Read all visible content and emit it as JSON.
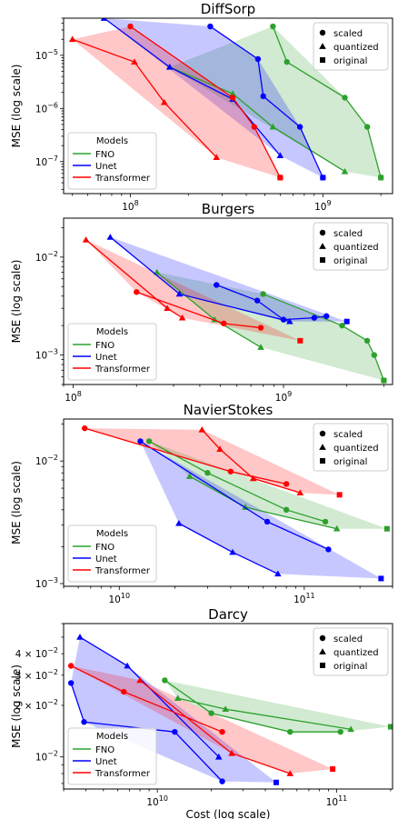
{
  "colors": {
    "FNO": "#2ca02c",
    "Unet": "#0000ff",
    "Transformer": "#ff0000"
  },
  "common": {
    "ylabel": "MSE (log scale)",
    "xlabel": "Cost (log scale)",
    "marker_legend": [
      {
        "marker": "circle",
        "label": "scaled"
      },
      {
        "marker": "triangle",
        "label": "quantized"
      },
      {
        "marker": "square",
        "label": "original"
      }
    ],
    "models_legend_title": "Models",
    "models": [
      "FNO",
      "Unet",
      "Transformer"
    ]
  },
  "chart_data": [
    {
      "type": "scatter",
      "title": "DiffSorp",
      "xscale": "log",
      "yscale": "log",
      "xlim": [
        45000000.0,
        2300000000.0
      ],
      "ylim": [
        2.5e-08,
        5e-05
      ],
      "xticks": [
        {
          "v": 100000000.0,
          "label": "10^8"
        },
        {
          "v": 1000000000.0,
          "label": "10^9"
        }
      ],
      "yticks": [
        {
          "v": 1e-07,
          "label": "10^-7"
        },
        {
          "v": 1e-06,
          "label": "10^-6"
        },
        {
          "v": 1e-05,
          "label": "10^-5"
        }
      ],
      "series": [
        {
          "name": "FNO",
          "scaled": [
            [
              550000000.0,
              3.5e-05
            ],
            [
              650000000.0,
              7.5e-06
            ],
            [
              1300000000.0,
              1.6e-06
            ],
            [
              1700000000.0,
              4.5e-07
            ],
            [
              2000000000.0,
              5e-08
            ]
          ],
          "quantized": [
            [
              160000000.0,
              6e-06
            ],
            [
              340000000.0,
              1.9e-06
            ],
            [
              550000000.0,
              4.5e-07
            ],
            [
              1300000000.0,
              6.5e-08
            ]
          ],
          "original": [
            [
              2000000000.0,
              5e-08
            ]
          ]
        },
        {
          "name": "Unet",
          "scaled": [
            [
              260000000.0,
              3.5e-05
            ],
            [
              460000000.0,
              8.5e-06
            ],
            [
              490000000.0,
              1.7e-06
            ],
            [
              760000000.0,
              4.5e-07
            ],
            [
              1000000000.0,
              5e-08
            ]
          ],
          "quantized": [
            [
              73000000.0,
              5e-05
            ],
            [
              160000000.0,
              6e-06
            ],
            [
              340000000.0,
              1.5e-06
            ],
            [
              600000000.0,
              1.3e-07
            ]
          ],
          "original": [
            [
              1000000000.0,
              5e-08
            ]
          ]
        },
        {
          "name": "Transformer",
          "scaled": [
            [
              100000000.0,
              3.5e-05
            ],
            [
              340000000.0,
              1.6e-06
            ],
            [
              440000000.0,
              4.5e-07
            ],
            [
              600000000.0,
              5e-08
            ]
          ],
          "quantized": [
            [
              50000000.0,
              2e-05
            ],
            [
              105000000.0,
              7.5e-06
            ],
            [
              150000000.0,
              1.3e-06
            ],
            [
              280000000.0,
              1.2e-07
            ]
          ],
          "original": [
            [
              600000000.0,
              5e-08
            ]
          ]
        }
      ],
      "legend": "upper right",
      "models_legend": "lower left"
    },
    {
      "type": "scatter",
      "title": "Burgers",
      "xscale": "log",
      "yscale": "log",
      "xlim": [
        90000000.0,
        3300000000.0
      ],
      "ylim": [
        0.0005,
        0.025
      ],
      "xticks": [
        {
          "v": 100000000.0,
          "label": "10^8"
        },
        {
          "v": 1000000000.0,
          "label": "10^9"
        }
      ],
      "yticks": [
        {
          "v": 0.001,
          "label": "10^-3"
        },
        {
          "v": 0.01,
          "label": "10^-2"
        }
      ],
      "series": [
        {
          "name": "FNO",
          "scaled": [
            [
              800000000.0,
              0.0042
            ],
            [
              1900000000.0,
              0.002
            ],
            [
              2500000000.0,
              0.0014
            ],
            [
              2700000000.0,
              0.001
            ],
            [
              3000000000.0,
              0.00055
            ]
          ],
          "quantized": [
            [
              250000000.0,
              0.007
            ],
            [
              470000000.0,
              0.0023
            ],
            [
              780000000.0,
              0.0012
            ]
          ],
          "original": [
            [
              3000000000.0,
              0.00055
            ]
          ]
        },
        {
          "name": "Unet",
          "scaled": [
            [
              480000000.0,
              0.0052
            ],
            [
              750000000.0,
              0.0036
            ],
            [
              1000000000.0,
              0.0023
            ],
            [
              1400000000.0,
              0.0024
            ],
            [
              1600000000.0,
              0.0025
            ]
          ],
          "quantized": [
            [
              150000000.0,
              0.016
            ],
            [
              320000000.0,
              0.0042
            ],
            [
              1070000000.0,
              0.0022
            ]
          ],
          "original": [
            [
              2000000000.0,
              0.0022
            ]
          ]
        },
        {
          "name": "Transformer",
          "scaled": [
            [
              200000000.0,
              0.0044
            ],
            [
              520000000.0,
              0.0021
            ],
            [
              780000000.0,
              0.0019
            ]
          ],
          "quantized": [
            [
              115000000.0,
              0.015
            ],
            [
              280000000.0,
              0.003
            ],
            [
              330000000.0,
              0.0024
            ]
          ],
          "original": [
            [
              1200000000.0,
              0.0014
            ]
          ]
        }
      ],
      "legend": "upper right",
      "models_legend": "lower left"
    },
    {
      "type": "scatter",
      "title": "NavierStokes",
      "xscale": "log",
      "yscale": "log",
      "xlim": [
        5000000000.0,
        300000000000.0
      ],
      "ylim": [
        0.00095,
        0.022
      ],
      "xticks": [
        {
          "v": 10000000000.0,
          "label": "10^10"
        },
        {
          "v": 100000000000.0,
          "label": "10^11"
        }
      ],
      "yticks": [
        {
          "v": 0.001,
          "label": "10^-3"
        },
        {
          "v": 0.01,
          "label": "10^-2"
        }
      ],
      "series": [
        {
          "name": "FNO",
          "scaled": [
            [
              14500000000.0,
              0.0145
            ],
            [
              30000000000.0,
              0.008
            ],
            [
              80000000000.0,
              0.004
            ],
            [
              130000000000.0,
              0.0032
            ]
          ],
          "quantized": [
            [
              24000000000.0,
              0.0075
            ],
            [
              48000000000.0,
              0.0042
            ],
            [
              150000000000.0,
              0.0028
            ]
          ],
          "original": [
            [
              280000000000.0,
              0.0028
            ]
          ]
        },
        {
          "name": "Unet",
          "scaled": [
            [
              13000000000.0,
              0.0145
            ],
            [
              63000000000.0,
              0.0032
            ],
            [
              135000000000.0,
              0.0019
            ]
          ],
          "quantized": [
            [
              21000000000.0,
              0.0031
            ],
            [
              41000000000.0,
              0.0018
            ],
            [
              72000000000.0,
              0.0012
            ]
          ],
          "original": [
            [
              260000000000.0,
              0.0011
            ]
          ]
        },
        {
          "name": "Transformer",
          "scaled": [
            [
              6500000000.0,
              0.0185
            ],
            [
              40000000000.0,
              0.0082
            ],
            [
              80000000000.0,
              0.0065
            ]
          ],
          "quantized": [
            [
              28000000000.0,
              0.018
            ],
            [
              35000000000.0,
              0.0125
            ],
            [
              53000000000.0,
              0.0072
            ],
            [
              95000000000.0,
              0.0055
            ]
          ],
          "original": [
            [
              155000000000.0,
              0.0053
            ]
          ]
        }
      ],
      "legend": "upper right",
      "models_legend": "lower left"
    },
    {
      "type": "scatter",
      "title": "Darcy",
      "xscale": "log",
      "yscale": "log",
      "xlim": [
        3000000000.0,
        205000000000.0
      ],
      "ylim": [
        0.0065,
        0.06
      ],
      "xticks": [
        {
          "v": 10000000000.0,
          "label": "10^10"
        },
        {
          "v": 100000000000.0,
          "label": "10^11"
        }
      ],
      "yticks": [
        {
          "v": 0.01,
          "label": "10^-2"
        },
        {
          "v": 0.02,
          "label": "2 × 10^-2"
        },
        {
          "v": 0.03,
          "label": "3 × 10^-2"
        },
        {
          "v": 0.04,
          "label": "4 × 10^-2"
        }
      ],
      "series": [
        {
          "name": "FNO",
          "scaled": [
            [
              11000000000.0,
              0.028
            ],
            [
              20000000000.0,
              0.018
            ],
            [
              55000000000.0,
              0.014
            ],
            [
              105000000000.0,
              0.014
            ]
          ],
          "quantized": [
            [
              13000000000.0,
              0.022
            ],
            [
              24000000000.0,
              0.019
            ],
            [
              120000000000.0,
              0.0145
            ]
          ],
          "original": [
            [
              200000000000.0,
              0.015
            ]
          ]
        },
        {
          "name": "Unet",
          "scaled": [
            [
              3300000000.0,
              0.027
            ],
            [
              3900000000.0,
              0.016
            ],
            [
              12500000000.0,
              0.014
            ],
            [
              23000000000.0,
              0.0072
            ]
          ],
          "quantized": [
            [
              3700000000.0,
              0.05
            ],
            [
              6800000000.0,
              0.034
            ],
            [
              22000000000.0,
              0.01
            ]
          ],
          "original": [
            [
              46000000000.0,
              0.0071
            ]
          ]
        },
        {
          "name": "Transformer",
          "scaled": [
            [
              3300000000.0,
              0.034
            ],
            [
              6500000000.0,
              0.024
            ],
            [
              23000000000.0,
              0.014
            ]
          ],
          "quantized": [
            [
              8000000000.0,
              0.028
            ],
            [
              26000000000.0,
              0.0105
            ],
            [
              55000000000.0,
              0.008
            ]
          ],
          "original": [
            [
              95000000000.0,
              0.0085
            ]
          ]
        }
      ],
      "legend": "upper right",
      "models_legend": "lower left"
    }
  ]
}
